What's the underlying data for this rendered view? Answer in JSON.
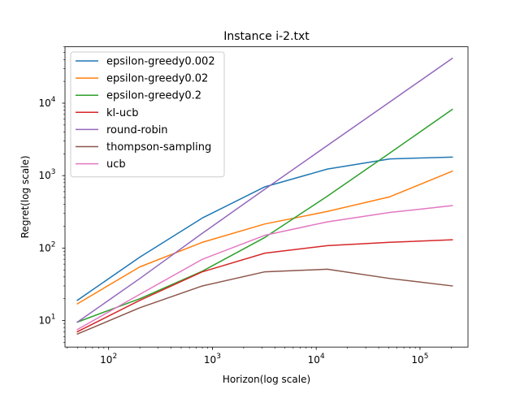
{
  "chart_data": {
    "type": "line",
    "title": "Instance i-2.txt",
    "xlabel": "Horizon(log scale)",
    "ylabel": "Regret(log scale)",
    "xscale": "log",
    "yscale": "log",
    "xlim": [
      38,
      290000
    ],
    "ylim": [
      4.3,
      60000
    ],
    "grid": false,
    "legend_position": "top-left",
    "x_ticks": [
      {
        "value": 100,
        "base": "10",
        "exp": "2"
      },
      {
        "value": 1000,
        "base": "10",
        "exp": "3"
      },
      {
        "value": 10000,
        "base": "10",
        "exp": "4"
      },
      {
        "value": 100000,
        "base": "10",
        "exp": "5"
      }
    ],
    "y_ticks": [
      {
        "value": 10,
        "base": "10",
        "exp": "1"
      },
      {
        "value": 100,
        "base": "10",
        "exp": "2"
      },
      {
        "value": 1000,
        "base": "10",
        "exp": "3"
      },
      {
        "value": 10000,
        "base": "10",
        "exp": "4"
      }
    ],
    "x": [
      50,
      200,
      800,
      3200,
      12800,
      51200,
      204800
    ],
    "series": [
      {
        "name": "epsilon-greedy0.002",
        "color": "#1f77b4",
        "values": [
          19,
          75,
          260,
          700,
          1230,
          1700,
          1800
        ]
      },
      {
        "name": "epsilon-greedy0.02",
        "color": "#ff7f0e",
        "values": [
          17,
          55,
          120,
          215,
          320,
          510,
          1150
        ]
      },
      {
        "name": "epsilon-greedy0.2",
        "color": "#2ca02c",
        "values": [
          9.5,
          20,
          48,
          140,
          520,
          2050,
          8200
        ]
      },
      {
        "name": "kl-ucb",
        "color": "#d62728",
        "values": [
          7,
          19,
          47,
          85,
          108,
          120,
          130
        ]
      },
      {
        "name": "round-robin",
        "color": "#9467bd",
        "values": [
          9.5,
          38,
          160,
          650,
          2600,
          10400,
          41600
        ]
      },
      {
        "name": "thompson-sampling",
        "color": "#8c564b",
        "values": [
          6.5,
          15,
          30,
          47,
          51,
          38,
          30
        ]
      },
      {
        "name": "ucb",
        "color": "#e377c2",
        "values": [
          7.5,
          23,
          70,
          150,
          230,
          310,
          385
        ]
      }
    ]
  }
}
